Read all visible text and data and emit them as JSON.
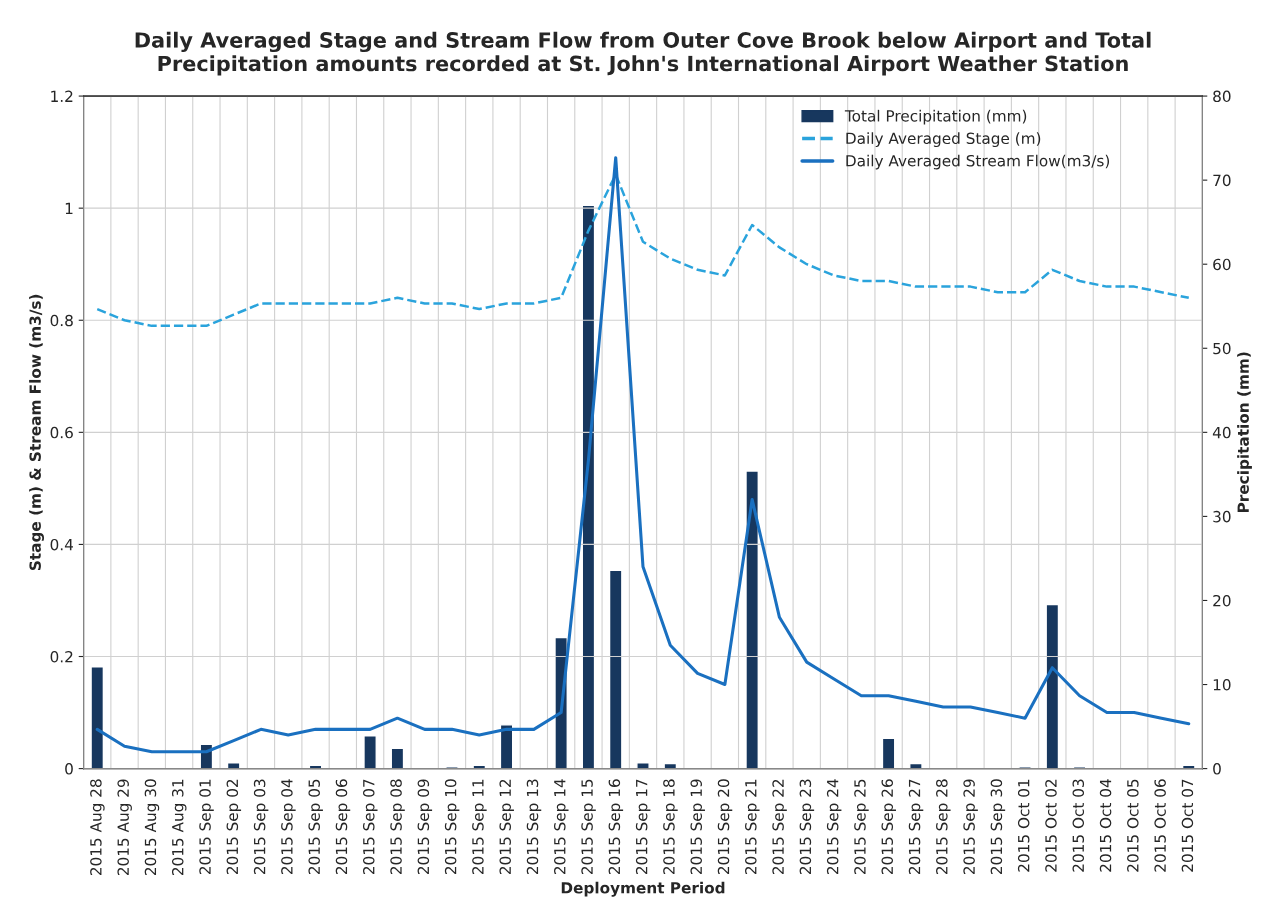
{
  "chart_data": {
    "type": "line",
    "title": "Daily Averaged Stage and Stream Flow from Outer Cove Brook below Airport and Total\nPrecipitation amounts recorded at St. John's International Airport Weather Station",
    "xlabel": "Deployment Period",
    "ylabel": "Stage (m) & Stream Flow (m3/s)",
    "y2label": "Precipitation (mm)",
    "categories": [
      "2015 Aug 28",
      "2015 Aug 29",
      "2015 Aug 30",
      "2015 Aug 31",
      "2015 Sep 01",
      "2015 Sep 02",
      "2015 Sep 03",
      "2015 Sep 04",
      "2015 Sep 05",
      "2015 Sep 06",
      "2015 Sep 07",
      "2015 Sep 08",
      "2015 Sep 09",
      "2015 Sep 10",
      "2015 Sep 11",
      "2015 Sep 12",
      "2015 Sep 13",
      "2015 Sep 14",
      "2015 Sep 15",
      "2015 Sep 16",
      "2015 Sep 17",
      "2015 Sep 18",
      "2015 Sep 19",
      "2015 Sep 20",
      "2015 Sep 21",
      "2015 Sep 22",
      "2015 Sep 23",
      "2015 Sep 24",
      "2015 Sep 25",
      "2015 Sep 26",
      "2015 Sep 27",
      "2015 Sep 28",
      "2015 Sep 29",
      "2015 Sep 30",
      "2015 Oct 01",
      "2015 Oct 02",
      "2015 Oct 03",
      "2015 Oct 04",
      "2015 Oct 05",
      "2015 Oct 06",
      "2015 Oct 07"
    ],
    "series": [
      {
        "name": "Total Precipitation (mm)",
        "type": "bar",
        "axis": "y2",
        "color": "#17375e",
        "values": [
          12.1,
          null,
          null,
          null,
          2.9,
          0.7,
          null,
          null,
          0.4,
          null,
          3.9,
          2.4,
          null,
          0.2,
          0.4,
          5.2,
          null,
          15.6,
          67,
          23.6,
          0.7,
          0.6,
          null,
          null,
          35.4,
          null,
          null,
          null,
          null,
          3.6,
          0.6,
          null,
          null,
          null,
          0.2,
          19.5,
          0.2,
          null,
          null,
          null,
          0.4
        ]
      },
      {
        "name": "Daily Averaged Stage (m)",
        "line_style": "dashed",
        "color": "#2aa3dc",
        "values": [
          0.82,
          0.8,
          0.79,
          0.79,
          0.79,
          0.81,
          0.83,
          0.83,
          0.83,
          0.83,
          0.83,
          0.84,
          0.83,
          0.83,
          0.82,
          0.83,
          0.83,
          0.84,
          0.96,
          1.06,
          0.94,
          0.91,
          0.89,
          0.88,
          0.97,
          0.93,
          0.9,
          0.88,
          0.87,
          0.87,
          0.86,
          0.86,
          0.86,
          0.85,
          0.85,
          0.89,
          0.87,
          0.86,
          0.86,
          0.85,
          0.84
        ]
      },
      {
        "name": "Daily Averaged Stream Flow(m3/s)",
        "line_style": "solid",
        "color": "#1a70c0",
        "values": [
          0.07,
          0.04,
          0.03,
          0.03,
          0.03,
          0.05,
          0.07,
          0.06,
          0.07,
          0.07,
          0.07,
          0.09,
          0.07,
          0.07,
          0.06,
          0.07,
          0.07,
          0.1,
          0.55,
          1.09,
          0.36,
          0.22,
          0.17,
          0.15,
          0.48,
          0.27,
          0.19,
          0.16,
          0.13,
          0.13,
          0.12,
          0.11,
          0.11,
          0.1,
          0.09,
          0.18,
          0.13,
          0.1,
          0.1,
          0.09,
          0.08
        ]
      }
    ],
    "ylim": [
      0,
      1.2
    ],
    "yticks": [
      0,
      0.2,
      0.4,
      0.6,
      0.8,
      1,
      1.2
    ],
    "y2lim": [
      0,
      80
    ],
    "y2ticks": [
      0,
      10,
      20,
      30,
      40,
      50,
      60,
      70,
      80
    ],
    "grid": true,
    "legend": "top right",
    "marker": "none"
  }
}
